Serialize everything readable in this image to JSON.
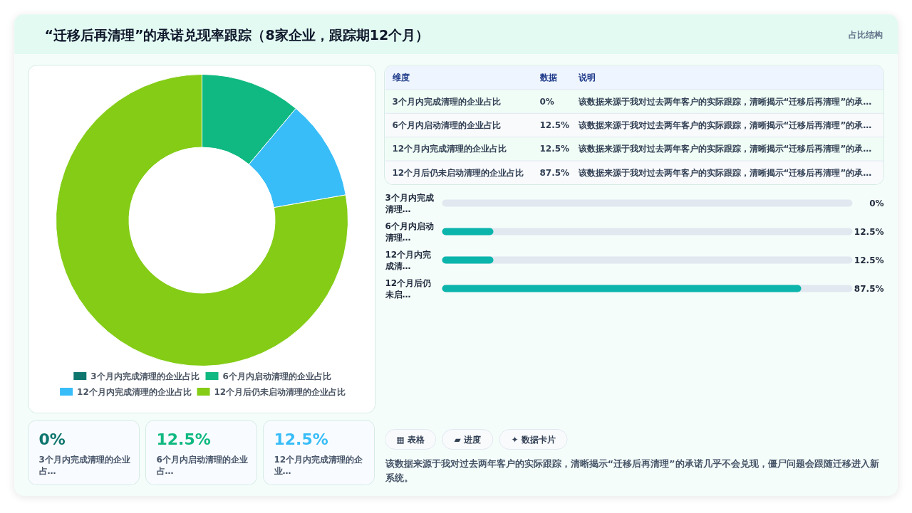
{
  "chart_data": [
    {
      "type": "other",
      "title": "“迁移后再清理”的承诺兑现率跟踪（8家企业，跟踪期12个月）",
      "subtitle": "占比结构"
    },
    {
      "type": "donut",
      "categories": [
        "3个月内完成清理的企业占比",
        "6个月内启动清理的企业占比",
        "12个月内完成清理的企业占比",
        "12个月后仍未启动清理的企业占比"
      ],
      "values": [
        0,
        12.5,
        12.5,
        87.5
      ],
      "colors": [
        "#0f766e",
        "#10b981",
        "#38bdf8",
        "#84cc16"
      ],
      "legend": "bottom"
    },
    {
      "type": "other",
      "categories": [
        "3个月内完成清理的企业占比",
        "6个月内启动清理的企业占比",
        "12个月内完成清理的企业占比",
        "12个月后仍未启动清理的企业占比"
      ],
      "value_labels": [
        "0%",
        "12.5%",
        "12.5%",
        "87.5%"
      ],
      "annotations": [
        "维度",
        "数据",
        "说明",
        "该数据来源于我对过去两年客户的实际跟踪，清晰揭示“迁移后再清理”的承…",
        "该数据来源于我对过去两年客户的实际跟踪，清晰揭示“迁移后再清理”的承…",
        "该数据来源于我对过去两年客户的实际跟踪，清晰揭示“迁移后再清理”的承…",
        "该数据来源于我对过去两年客户的实际跟踪，清晰揭示“迁移后再清理”的承…"
      ]
    },
    {
      "type": "bar",
      "orientation": "horizontal",
      "categories": [
        "3个月内完成清理…",
        "6个月内启动清理…",
        "12个月内完成清…",
        "12个月后仍未启…"
      ],
      "values": [
        0,
        12.5,
        12.5,
        87.5
      ],
      "value_labels": [
        "0%",
        "12.5%",
        "12.5%",
        "87.5%"
      ],
      "color": "#0bb5ac",
      "xlim": [
        0,
        100
      ],
      "tick_labels": "y",
      "bands": [
        {
          "axis": "x",
          "from": 0,
          "to": 100,
          "color": "#e2e8f0"
        }
      ]
    },
    {
      "type": "other",
      "categories": [
        "3个月内完成清理的企业占…",
        "6个月内启动清理的企业占…",
        "12个月内完成清理的企业…"
      ],
      "value_labels": [
        "0%",
        "12.5%",
        "12.5%"
      ]
    },
    {
      "type": "other",
      "categories": [
        "▦ 表格",
        "▰ 进度",
        "✦ 数据卡片"
      ],
      "annotations": [
        "该数据来源于我对过去两年客户的实际跟踪，清晰揭示“迁移后再清理”的承诺几乎不会兑现，僵尸问题会跟随迁移进入新系统。"
      ]
    }
  ]
}
